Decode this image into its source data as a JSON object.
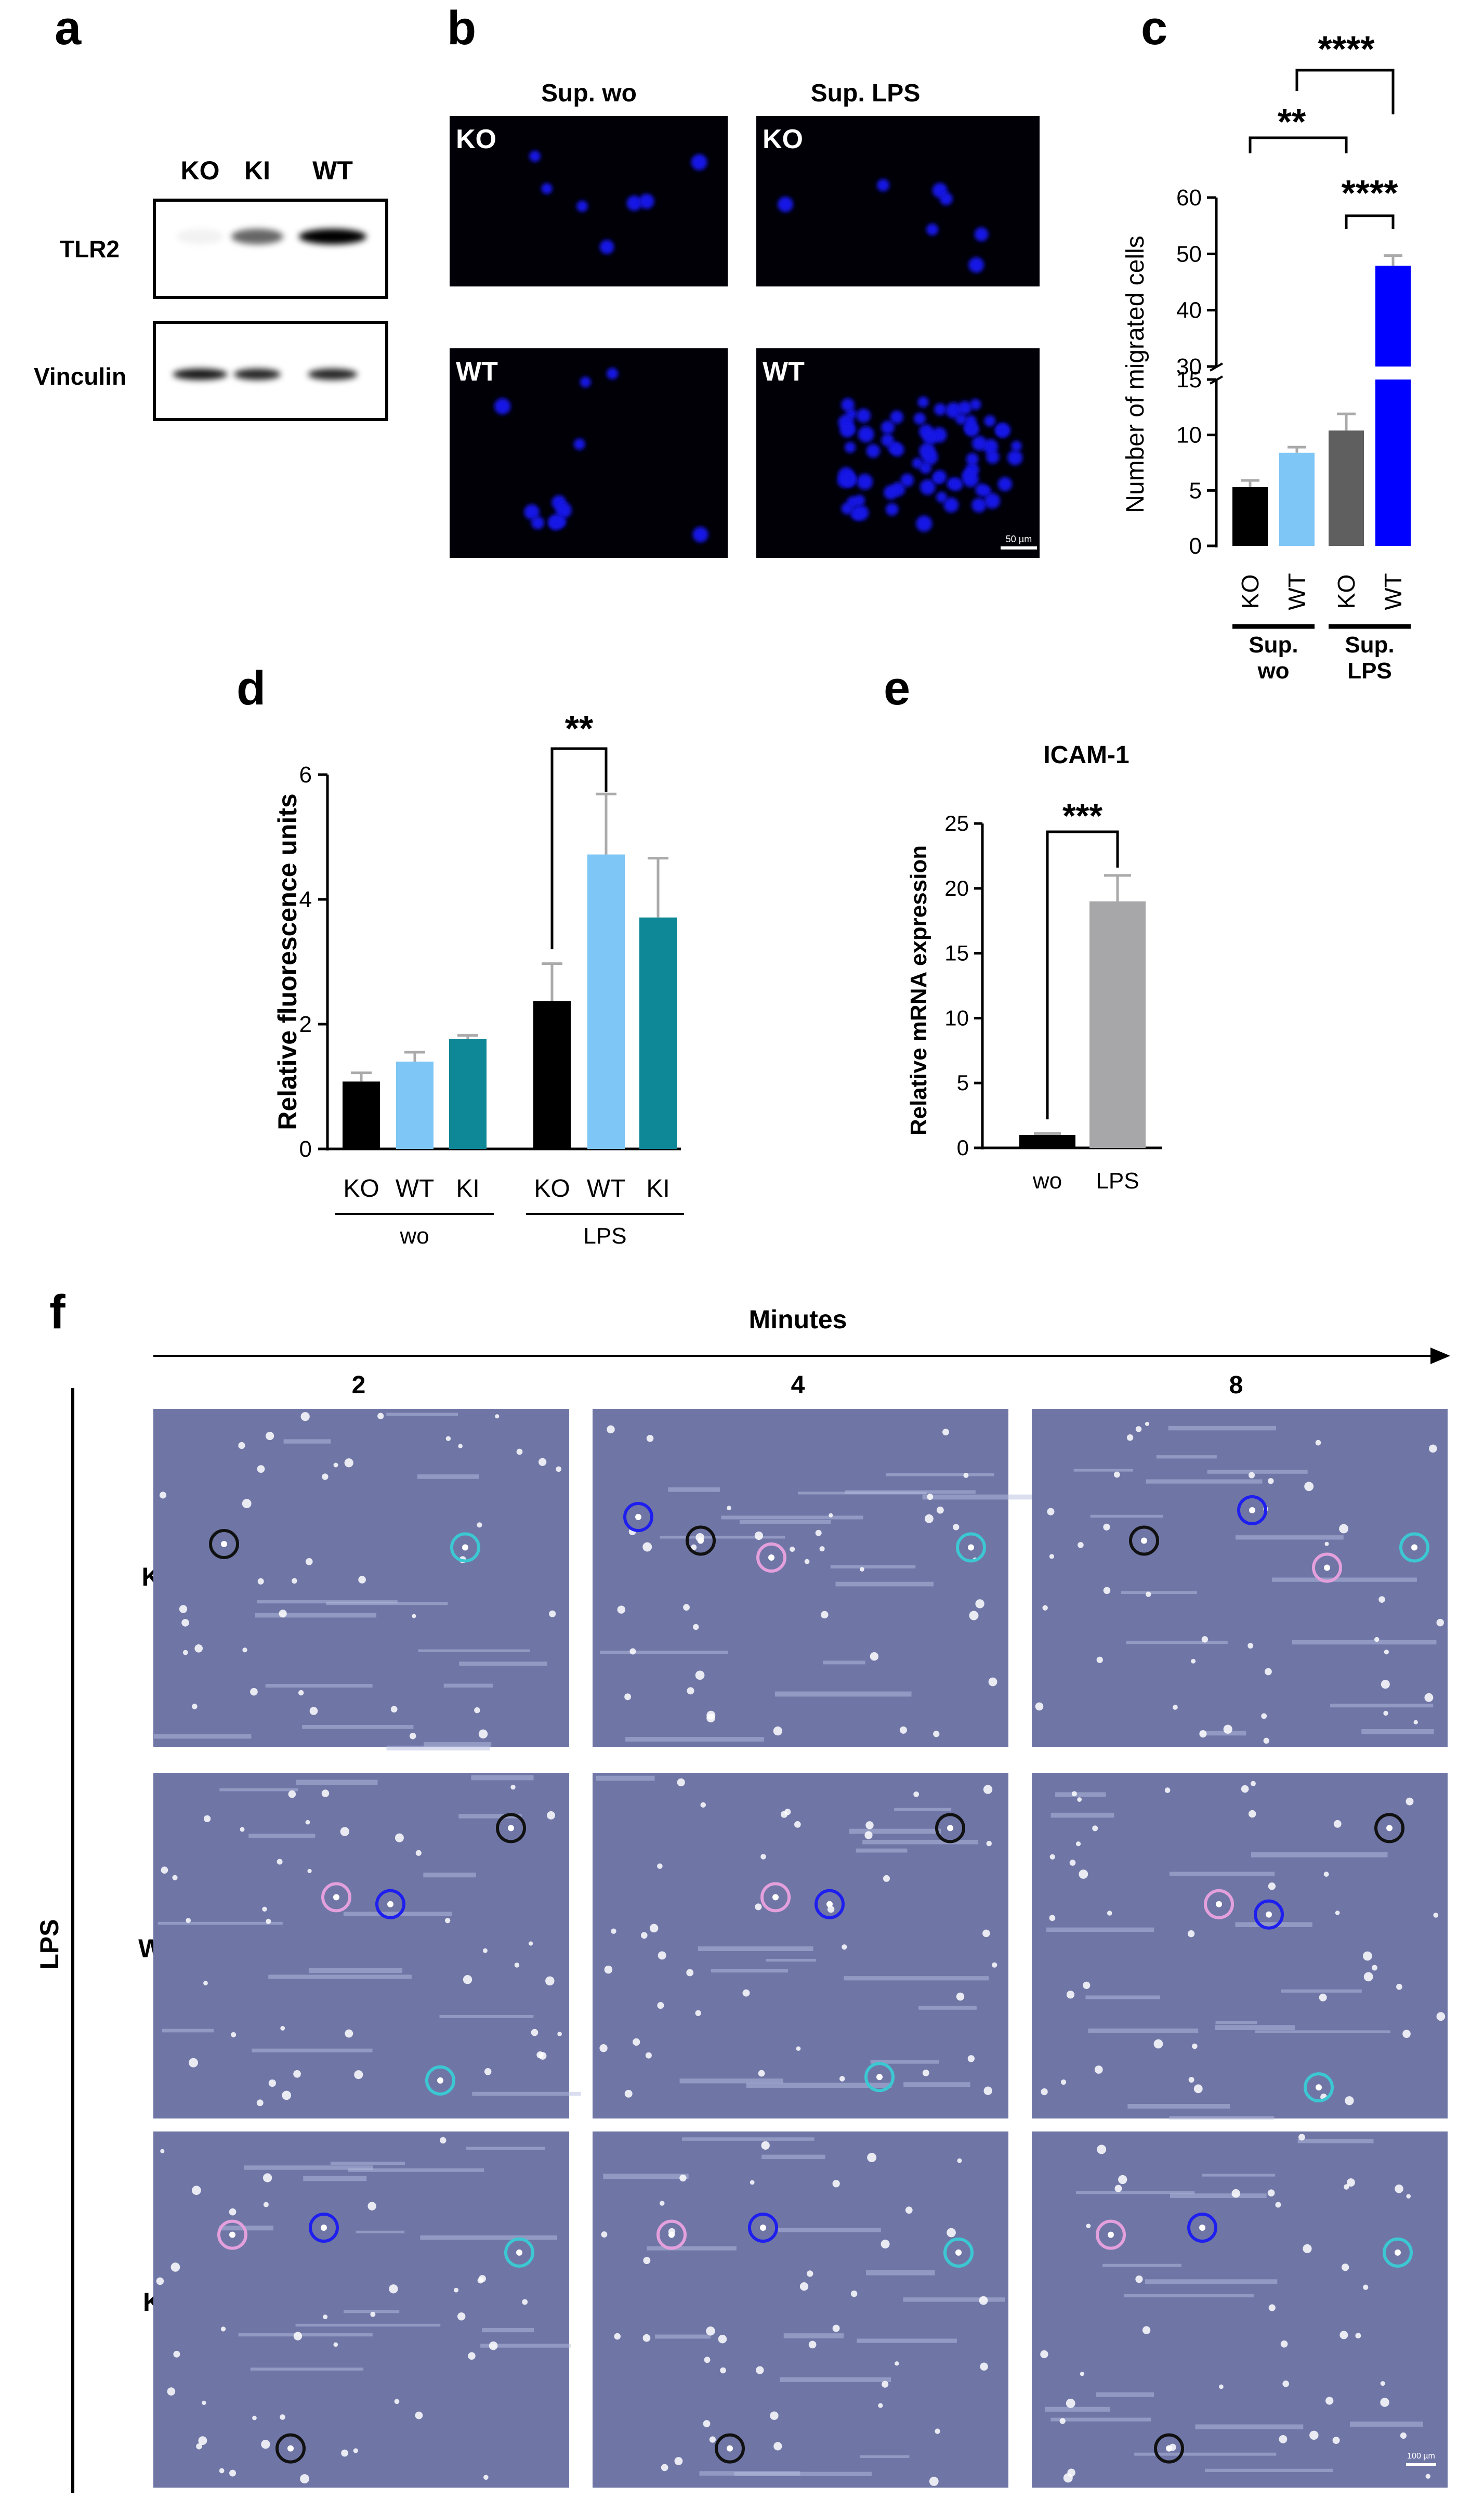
{
  "panel_letters": [
    "a",
    "b",
    "c",
    "d",
    "e",
    "f"
  ],
  "panel_a": {
    "lanes": [
      "KO",
      "KI",
      "WT"
    ],
    "blots": [
      {
        "name": "TLR2",
        "intensities": [
          0.05,
          0.6,
          1.0
        ]
      },
      {
        "name": "Vinculin",
        "intensities": [
          0.9,
          0.85,
          0.85
        ]
      }
    ]
  },
  "panel_b": {
    "columns": [
      "Sup. wo",
      "Sup. LPS"
    ],
    "tiles": [
      {
        "label": "KO",
        "cell_density": "low"
      },
      {
        "label": "KO",
        "cell_density": "low"
      },
      {
        "label": "WT",
        "cell_density": "medium"
      },
      {
        "label": "WT",
        "cell_density": "high"
      }
    ],
    "scale_bar": "50 µm",
    "channel_color": "#1414e6"
  },
  "panel_f": {
    "axis_label": "Minutes",
    "time_points": [
      "2",
      "4",
      "8"
    ],
    "group_label": "LPS",
    "rows": [
      "KO",
      "WT",
      "KI"
    ],
    "scale_bar": "100 µm",
    "circle_colors": {
      "black": "#111111",
      "blue": "#1e1eee",
      "pink": "#e4a0dc",
      "cyan": "#3cc8d2"
    }
  },
  "chart_data": [
    {
      "panel": "c",
      "type": "bar",
      "categories": [
        "KO",
        "WT",
        "KO",
        "WT"
      ],
      "groups": [
        {
          "label": "Sup. wo",
          "indices": [
            0,
            1
          ]
        },
        {
          "label": "Sup. LPS",
          "indices": [
            2,
            3
          ]
        }
      ],
      "values": [
        5.3,
        8.4,
        10.4,
        47.9
      ],
      "errors": [
        0.6,
        0.5,
        1.5,
        1.8
      ],
      "colors": [
        "#000000",
        "#7ec6f5",
        "#5f5f5f",
        "#0000ff"
      ],
      "ylabel": "Number of migrated cells",
      "yaxis_break": [
        15,
        30
      ],
      "yticks_lower": [
        0,
        5,
        10,
        15
      ],
      "yticks_upper": [
        30,
        40,
        50,
        60
      ],
      "significance": [
        {
          "from": 0,
          "to": 2,
          "label": "**"
        },
        {
          "from": 2,
          "to": 3,
          "label": "****"
        },
        {
          "from": 1,
          "to": 3,
          "label": "****"
        }
      ]
    },
    {
      "panel": "d",
      "type": "bar",
      "categories": [
        "KO",
        "WT",
        "KI",
        "KO",
        "WT",
        "KI"
      ],
      "groups": [
        {
          "label": "wo",
          "indices": [
            0,
            1,
            2
          ]
        },
        {
          "label": "LPS",
          "indices": [
            3,
            4,
            5
          ]
        }
      ],
      "values": [
        1.08,
        1.4,
        1.76,
        2.37,
        4.72,
        3.71
      ],
      "errors": [
        0.14,
        0.15,
        0.06,
        0.6,
        0.97,
        0.95
      ],
      "colors": [
        "#000000",
        "#7ec6f5",
        "#0e8796",
        "#000000",
        "#7ec6f5",
        "#0e8796"
      ],
      "ylabel": "Relative fluorescence units",
      "ylim": [
        0,
        6
      ],
      "yticks": [
        0,
        2,
        4,
        6
      ],
      "significance": [
        {
          "from": 3,
          "to": 4,
          "label": "**"
        }
      ]
    },
    {
      "panel": "e",
      "type": "bar",
      "title": "ICAM-1",
      "categories": [
        "wo",
        "LPS"
      ],
      "values": [
        1.0,
        19.0
      ],
      "errors": [
        0.1,
        2.0
      ],
      "colors": [
        "#000000",
        "#a7a7aa"
      ],
      "ylabel": "Relative mRNA expression",
      "ylim": [
        0,
        25
      ],
      "yticks": [
        0,
        5,
        10,
        15,
        20,
        25
      ],
      "significance": [
        {
          "from": 0,
          "to": 1,
          "label": "***"
        }
      ]
    }
  ]
}
